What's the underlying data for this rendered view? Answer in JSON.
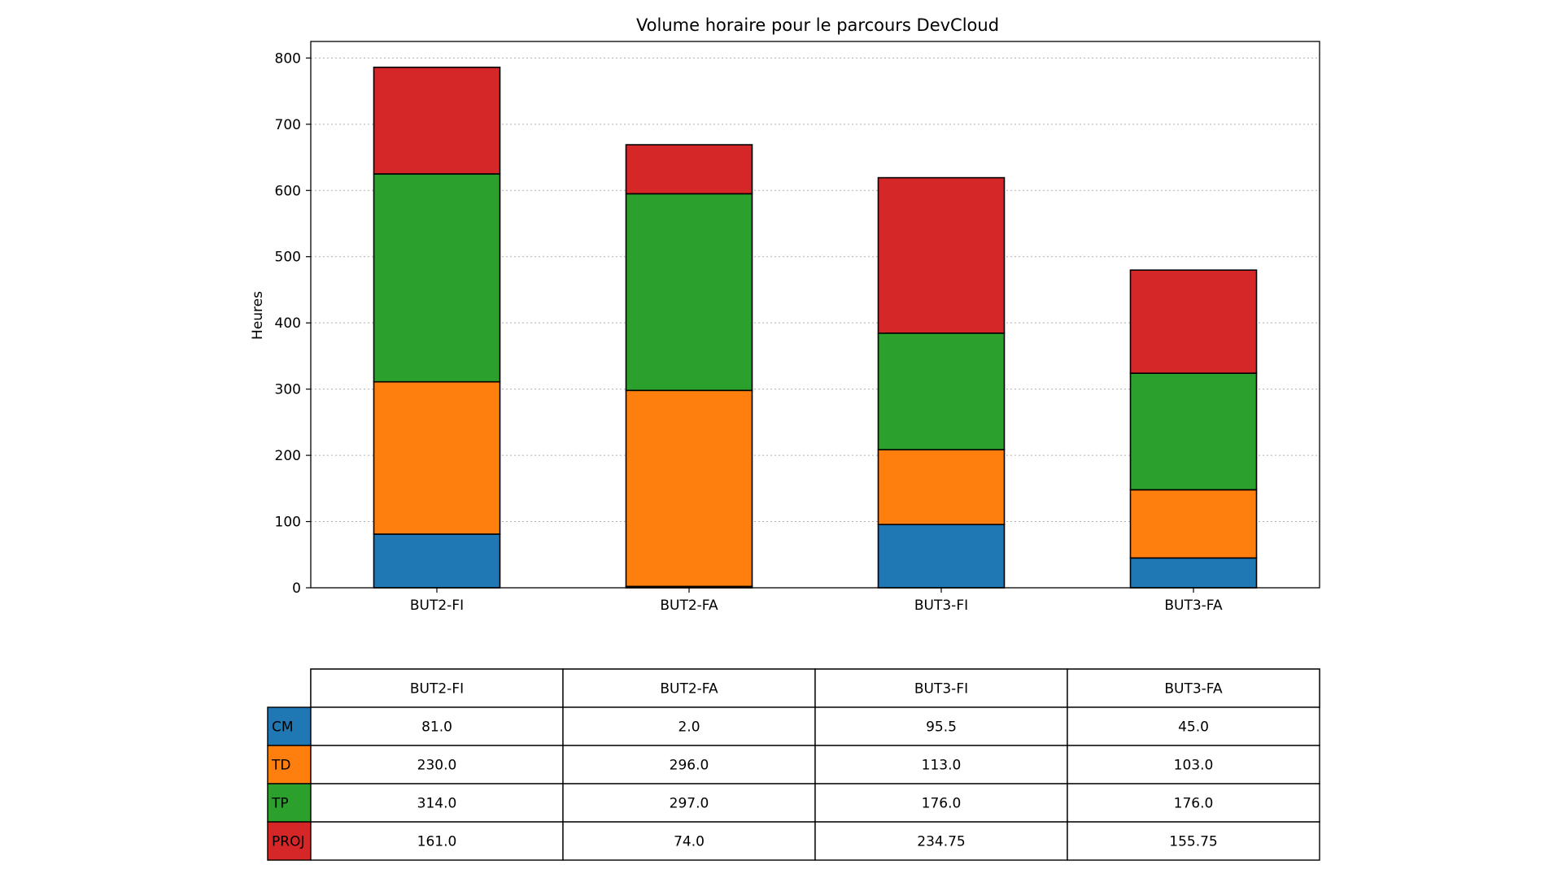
{
  "chart_data": {
    "type": "bar",
    "stacked": true,
    "title": "Volume horaire pour le parcours DevCloud",
    "xlabel": "",
    "ylabel": "Heures",
    "ylim": [
      0,
      825
    ],
    "yticks": [
      0,
      100,
      200,
      300,
      400,
      500,
      600,
      700,
      800
    ],
    "grid": "y-dotted",
    "categories": [
      "BUT2-FI",
      "BUT2-FA",
      "BUT3-FI",
      "BUT3-FA"
    ],
    "series": [
      {
        "name": "CM",
        "color": "#1f77b4",
        "values": [
          81.0,
          2.0,
          95.5,
          45.0
        ],
        "labels": [
          "81.0",
          "2.0",
          "95.5",
          "45.0"
        ]
      },
      {
        "name": "TD",
        "color": "#ff7f0e",
        "values": [
          230.0,
          296.0,
          113.0,
          103.0
        ],
        "labels": [
          "230.0",
          "296.0",
          "113.0",
          "103.0"
        ]
      },
      {
        "name": "TP",
        "color": "#2ca02c",
        "values": [
          314.0,
          297.0,
          176.0,
          176.0
        ],
        "labels": [
          "314.0",
          "297.0",
          "176.0",
          "176.0"
        ]
      },
      {
        "name": "PROJ",
        "color": "#d62728",
        "values": [
          161.0,
          74.0,
          234.75,
          155.75
        ],
        "labels": [
          "161.0",
          "74.0",
          "234.75",
          "155.75"
        ]
      }
    ],
    "table": {
      "present": true,
      "position": "below"
    }
  }
}
